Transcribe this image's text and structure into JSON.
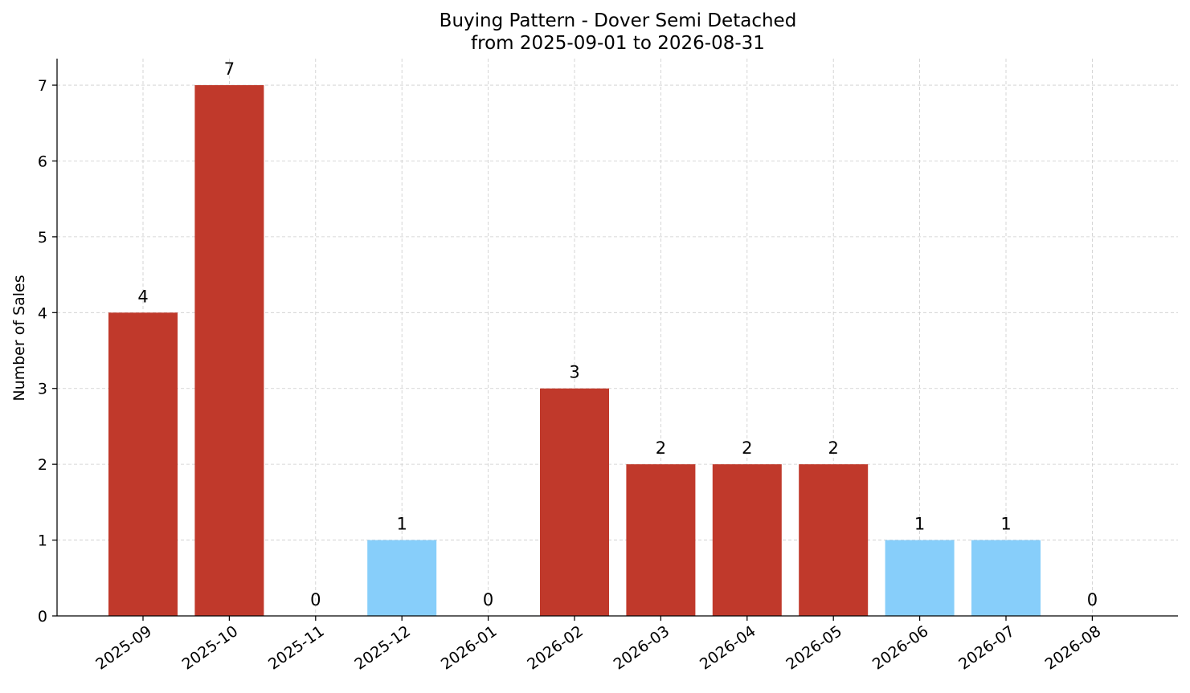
{
  "chart_data": {
    "type": "bar",
    "title": "Buying Pattern - Dover Semi Detached",
    "subtitle": "from 2025-09-01 to 2026-08-31",
    "xlabel": "",
    "ylabel": "Number of Sales",
    "categories": [
      "2025-09",
      "2025-10",
      "2025-11",
      "2025-12",
      "2026-01",
      "2026-02",
      "2026-03",
      "2026-04",
      "2026-05",
      "2026-06",
      "2026-07",
      "2026-08"
    ],
    "values": [
      4,
      7,
      0,
      1,
      0,
      3,
      2,
      2,
      2,
      1,
      1,
      0
    ],
    "bar_colors": [
      "#c0392b",
      "#c0392b",
      "#87cefa",
      "#87cefa",
      "#87cefa",
      "#c0392b",
      "#c0392b",
      "#c0392b",
      "#c0392b",
      "#87cefa",
      "#87cefa",
      "#87cefa"
    ],
    "yticks": [
      0,
      1,
      2,
      3,
      4,
      5,
      6,
      7
    ],
    "ylim": [
      0,
      7.35
    ],
    "grid": true,
    "colors": {
      "high": "#c0392b",
      "low": "#87cefa"
    }
  }
}
